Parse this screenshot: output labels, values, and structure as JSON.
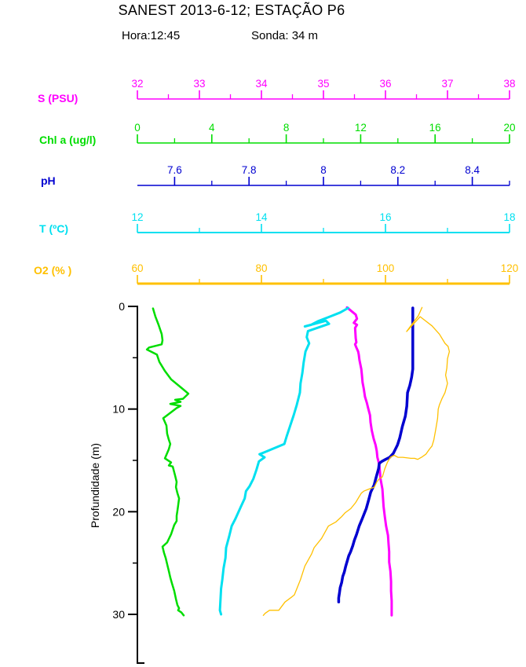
{
  "title": "SANEST 2013-6-12; ESTAÇÃO P6",
  "subtitle": {
    "hora": "Hora:12:45",
    "sonda": "Sonda: 34 m"
  },
  "colors": {
    "salinity": "#FF00FF",
    "chlorophyll": "#00DD00",
    "ph": "#0000D0",
    "temperature": "#00E0F0",
    "oxygen": "#FFC000",
    "text": "#000000"
  },
  "chart_data": {
    "type": "line",
    "profile": "depth-profile",
    "grid": false,
    "legend": "none",
    "depth_axis": {
      "label": "Profundidade (m)",
      "min": 0,
      "max": 34.8,
      "major_ticks": [
        0,
        10,
        20,
        30
      ],
      "minor_ticks": [
        5,
        15,
        25
      ],
      "unit": "m"
    },
    "axes": [
      {
        "id": "s",
        "label": "S (PSU)",
        "color": "#FF00FF",
        "min": 32,
        "max": 38,
        "major_ticks": [
          32,
          33,
          34,
          35,
          36,
          37,
          38
        ],
        "minor_ticks": [
          32.5,
          33.5,
          34.5,
          35.5,
          36.5,
          37.5
        ]
      },
      {
        "id": "chl",
        "label": "Chl a (ug/l)",
        "color": "#00DD00",
        "min": 0,
        "max": 20,
        "major_ticks": [
          0,
          4,
          8,
          12,
          16,
          20
        ],
        "minor_ticks": [
          2,
          6,
          10,
          14,
          18
        ]
      },
      {
        "id": "ph",
        "label": "pH",
        "color": "#0000D0",
        "min": 7.5,
        "max": 8.5,
        "major_ticks": [
          7.6,
          7.8,
          8,
          8.2,
          8.4
        ],
        "minor_ticks": [
          7.7,
          7.9,
          8.1,
          8.3,
          8.5
        ]
      },
      {
        "id": "t",
        "label": "T (ºC)",
        "color": "#00E0F0",
        "min": 12,
        "max": 18,
        "major_ticks": [
          12,
          14,
          16,
          18
        ],
        "minor_ticks": [
          13,
          15,
          17
        ]
      },
      {
        "id": "o2",
        "label": "O2 (% )",
        "color": "#FFC000",
        "min": 60,
        "max": 120,
        "major_ticks": [
          60,
          80,
          100,
          120
        ],
        "minor_ticks": [
          70,
          90,
          110
        ]
      }
    ],
    "series": [
      {
        "axis": "s",
        "name": "salinity-profile",
        "line_width": 3,
        "points": [
          [
            0.1,
            35.38
          ],
          [
            0.8,
            35.52
          ],
          [
            1.2,
            35.54
          ],
          [
            1.6,
            35.49
          ],
          [
            1.8,
            35.54
          ],
          [
            2.1,
            35.51
          ],
          [
            3.1,
            35.52
          ],
          [
            3.5,
            35.53
          ],
          [
            3.7,
            35.51
          ],
          [
            4.0,
            35.53
          ],
          [
            4.4,
            35.56
          ],
          [
            4.7,
            35.57
          ],
          [
            5.2,
            35.58
          ],
          [
            5.5,
            35.59
          ],
          [
            6.1,
            35.61
          ],
          [
            6.7,
            35.62
          ],
          [
            7.4,
            35.63
          ],
          [
            8.0,
            35.65
          ],
          [
            8.8,
            35.67
          ],
          [
            9.4,
            35.7
          ],
          [
            9.9,
            35.72
          ],
          [
            10.6,
            35.75
          ],
          [
            11.3,
            35.76
          ],
          [
            12.1,
            35.78
          ],
          [
            12.9,
            35.81
          ],
          [
            13.5,
            35.84
          ],
          [
            14.1,
            35.86
          ],
          [
            14.7,
            35.87
          ],
          [
            15.4,
            35.9
          ],
          [
            16.1,
            35.91
          ],
          [
            16.8,
            35.92
          ],
          [
            17.8,
            35.95
          ],
          [
            18.6,
            35.96
          ],
          [
            19.5,
            35.97
          ],
          [
            20.5,
            35.99
          ],
          [
            21.4,
            36.01
          ],
          [
            22.3,
            36.04
          ],
          [
            23.1,
            36.05
          ],
          [
            23.9,
            36.06
          ],
          [
            24.9,
            36.06
          ],
          [
            25.8,
            36.08
          ],
          [
            26.8,
            36.09
          ],
          [
            27.7,
            36.09
          ],
          [
            28.7,
            36.1
          ],
          [
            29.5,
            36.1
          ],
          [
            30.1,
            36.1
          ]
        ]
      },
      {
        "axis": "chl",
        "name": "chlorophyll-profile",
        "line_width": 2.5,
        "points": [
          [
            0.2,
            0.84
          ],
          [
            1.0,
            0.97
          ],
          [
            1.8,
            1.14
          ],
          [
            2.7,
            1.31
          ],
          [
            3.3,
            1.35
          ],
          [
            3.7,
            1.31
          ],
          [
            4.0,
            0.63
          ],
          [
            4.2,
            0.51
          ],
          [
            4.7,
            1.05
          ],
          [
            5.4,
            1.18
          ],
          [
            6.3,
            1.48
          ],
          [
            7.1,
            1.81
          ],
          [
            8.0,
            2.41
          ],
          [
            8.5,
            2.74
          ],
          [
            9.0,
            2.45
          ],
          [
            9.1,
            2.03
          ],
          [
            9.3,
            2.32
          ],
          [
            9.5,
            1.77
          ],
          [
            9.7,
            2.32
          ],
          [
            9.9,
            2.11
          ],
          [
            10.9,
            1.39
          ],
          [
            11.6,
            1.56
          ],
          [
            12.4,
            1.6
          ],
          [
            13.0,
            1.69
          ],
          [
            13.4,
            1.77
          ],
          [
            13.9,
            1.69
          ],
          [
            14.8,
            1.48
          ],
          [
            15.2,
            1.81
          ],
          [
            15.5,
            1.69
          ],
          [
            15.6,
            1.9
          ],
          [
            16.5,
            2.03
          ],
          [
            17.1,
            2.11
          ],
          [
            17.6,
            2.07
          ],
          [
            18.2,
            2.15
          ],
          [
            18.7,
            2.24
          ],
          [
            19.4,
            2.19
          ],
          [
            19.9,
            2.15
          ],
          [
            20.4,
            2.11
          ],
          [
            20.9,
            2.11
          ],
          [
            21.3,
            1.98
          ],
          [
            22.2,
            1.81
          ],
          [
            23.0,
            1.6
          ],
          [
            23.4,
            1.35
          ],
          [
            24.0,
            1.43
          ],
          [
            24.5,
            1.52
          ],
          [
            25.1,
            1.6
          ],
          [
            25.8,
            1.69
          ],
          [
            26.4,
            1.77
          ],
          [
            27.0,
            1.86
          ],
          [
            27.7,
            1.98
          ],
          [
            28.5,
            2.07
          ],
          [
            29.1,
            2.15
          ],
          [
            29.4,
            2.24
          ],
          [
            29.6,
            2.19
          ],
          [
            29.8,
            2.36
          ],
          [
            30.1,
            2.49
          ]
        ]
      },
      {
        "axis": "ph",
        "name": "ph-profile",
        "line_width": 3.5,
        "points": [
          [
            0.15,
            8.24
          ],
          [
            2.3,
            8.24
          ],
          [
            4.6,
            8.24
          ],
          [
            6.1,
            8.24
          ],
          [
            6.9,
            8.237
          ],
          [
            7.7,
            8.232
          ],
          [
            8.4,
            8.226
          ],
          [
            9.7,
            8.224
          ],
          [
            10.7,
            8.22
          ],
          [
            11.7,
            8.212
          ],
          [
            12.8,
            8.205
          ],
          [
            13.5,
            8.199
          ],
          [
            14.3,
            8.188
          ],
          [
            14.7,
            8.178
          ],
          [
            14.9,
            8.167
          ],
          [
            15.1,
            8.157
          ],
          [
            15.3,
            8.15
          ],
          [
            15.8,
            8.148
          ],
          [
            16.6,
            8.142
          ],
          [
            17.4,
            8.136
          ],
          [
            18.1,
            8.127
          ],
          [
            18.9,
            8.121
          ],
          [
            19.7,
            8.115
          ],
          [
            20.7,
            8.104
          ],
          [
            21.4,
            8.096
          ],
          [
            22.2,
            8.089
          ],
          [
            22.8,
            8.083
          ],
          [
            23.3,
            8.079
          ],
          [
            23.9,
            8.073
          ],
          [
            24.3,
            8.068
          ],
          [
            24.8,
            8.064
          ],
          [
            25.3,
            8.06
          ],
          [
            25.9,
            8.056
          ],
          [
            26.3,
            8.052
          ],
          [
            26.9,
            8.049
          ],
          [
            27.4,
            8.045
          ],
          [
            27.9,
            8.043
          ],
          [
            28.4,
            8.041
          ],
          [
            28.8,
            8.041
          ]
        ]
      },
      {
        "axis": "t",
        "name": "temperature-profile",
        "line_width": 3,
        "points": [
          [
            0.15,
            15.4
          ],
          [
            0.6,
            15.27
          ],
          [
            1.0,
            15.1
          ],
          [
            1.45,
            14.91
          ],
          [
            1.8,
            14.8
          ],
          [
            1.95,
            14.7
          ],
          [
            1.4,
            15.04
          ],
          [
            1.7,
            15.09
          ],
          [
            2.4,
            14.75
          ],
          [
            3.0,
            14.73
          ],
          [
            3.6,
            14.77
          ],
          [
            4.4,
            14.71
          ],
          [
            5.5,
            14.68
          ],
          [
            6.5,
            14.66
          ],
          [
            7.5,
            14.63
          ],
          [
            8.4,
            14.62
          ],
          [
            9.6,
            14.57
          ],
          [
            10.6,
            14.52
          ],
          [
            11.7,
            14.46
          ],
          [
            12.6,
            14.41
          ],
          [
            13.4,
            14.37
          ],
          [
            14.2,
            14.05
          ],
          [
            14.4,
            13.97
          ],
          [
            14.7,
            14.05
          ],
          [
            15.1,
            13.96
          ],
          [
            15.9,
            13.92
          ],
          [
            16.8,
            13.87
          ],
          [
            17.5,
            13.81
          ],
          [
            18.0,
            13.75
          ],
          [
            18.7,
            13.73
          ],
          [
            19.5,
            13.67
          ],
          [
            20.7,
            13.58
          ],
          [
            21.4,
            13.52
          ],
          [
            22.4,
            13.48
          ],
          [
            23.5,
            13.43
          ],
          [
            24.5,
            13.42
          ],
          [
            25.5,
            13.39
          ],
          [
            26.6,
            13.37
          ],
          [
            27.5,
            13.35
          ],
          [
            28.5,
            13.34
          ],
          [
            29.6,
            13.33
          ],
          [
            30.0,
            13.35
          ]
        ]
      },
      {
        "axis": "o2",
        "name": "oxygen-profile",
        "line_width": 1.3,
        "points": [
          [
            0.1,
            105.9
          ],
          [
            0.9,
            105.3
          ],
          [
            2.45,
            103.4
          ],
          [
            1.0,
            105.6
          ],
          [
            1.9,
            107.5
          ],
          [
            2.7,
            108.7
          ],
          [
            3.6,
            109.6
          ],
          [
            3.9,
            110.1
          ],
          [
            4.4,
            110.3
          ],
          [
            5.1,
            110.0
          ],
          [
            6.0,
            109.9
          ],
          [
            6.7,
            109.7
          ],
          [
            7.5,
            110.0
          ],
          [
            8.4,
            109.6
          ],
          [
            9.0,
            109.1
          ],
          [
            9.6,
            108.7
          ],
          [
            10.0,
            108.5
          ],
          [
            10.9,
            108.4
          ],
          [
            12.0,
            108.1
          ],
          [
            13.0,
            107.8
          ],
          [
            13.6,
            107.5
          ],
          [
            13.9,
            107.1
          ],
          [
            14.4,
            106.5
          ],
          [
            14.7,
            105.8
          ],
          [
            14.9,
            105.2
          ],
          [
            14.8,
            104.7
          ],
          [
            14.8,
            104.1
          ],
          [
            14.7,
            102.8
          ],
          [
            14.7,
            102.0
          ],
          [
            14.5,
            101.4
          ],
          [
            14.7,
            100.8
          ],
          [
            15.2,
            100.3
          ],
          [
            15.8,
            99.9
          ],
          [
            16.6,
            99.5
          ],
          [
            16.8,
            99.0
          ],
          [
            17.1,
            98.6
          ],
          [
            17.6,
            98.2
          ],
          [
            17.8,
            97.3
          ],
          [
            18.0,
            96.5
          ],
          [
            18.2,
            96.1
          ],
          [
            18.6,
            95.7
          ],
          [
            19.1,
            95.2
          ],
          [
            19.7,
            94.4
          ],
          [
            20.1,
            93.5
          ],
          [
            20.5,
            92.9
          ],
          [
            21.0,
            92.0
          ],
          [
            21.4,
            90.8
          ],
          [
            22.6,
            89.7
          ],
          [
            23.5,
            88.5
          ],
          [
            24.1,
            88.1
          ],
          [
            25.3,
            87.0
          ],
          [
            26.6,
            86.3
          ],
          [
            28.1,
            85.3
          ],
          [
            28.3,
            84.9
          ],
          [
            28.8,
            83.8
          ],
          [
            29.6,
            82.8
          ],
          [
            29.6,
            81.3
          ],
          [
            29.9,
            80.6
          ],
          [
            30.1,
            80.3
          ]
        ]
      }
    ]
  }
}
